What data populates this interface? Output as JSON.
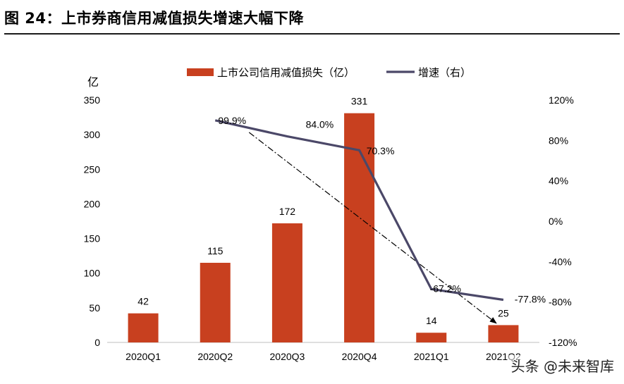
{
  "figure_title": "图 24：上市券商信用减值损失增速大幅下降",
  "watermark": "头条 @未来智库",
  "colors": {
    "bar": "#c8401f",
    "line": "#4b4868",
    "trend": "#000000",
    "rule": "#1a1a1a"
  },
  "chart_data": {
    "type": "bar",
    "title": "",
    "categories": [
      "2020Q1",
      "2020Q2",
      "2020Q3",
      "2020Q4",
      "2021Q1",
      "2021Q2"
    ],
    "series": [
      {
        "name": "上市公司信用减值损失（亿）",
        "kind": "bar",
        "axis": "left",
        "values": [
          42,
          115,
          172,
          331,
          14,
          25
        ],
        "labels": [
          "42",
          "115",
          "172",
          "331",
          "14",
          "25"
        ]
      },
      {
        "name": "增速（右）",
        "kind": "line",
        "axis": "right",
        "values": [
          null,
          99.9,
          84.0,
          70.3,
          -67.2,
          -77.8
        ],
        "labels": [
          "",
          "99.9%",
          "84.0%",
          "70.3%",
          "-67.2%",
          "-77.8%"
        ]
      }
    ],
    "y_left": {
      "label": "亿",
      "min": 0,
      "max": 350,
      "ticks": [
        "0",
        "50",
        "100",
        "150",
        "200",
        "250",
        "300",
        "350"
      ]
    },
    "y_right": {
      "min": -120,
      "max": 120,
      "ticks": [
        "-120%",
        "-80%",
        "-40%",
        "0%",
        "40%",
        "80%",
        "120%"
      ]
    },
    "trend_arrow": {
      "from_category": "2020Q2",
      "from_value_right": 88,
      "to_category": "2021Q2",
      "to_value_right": -101
    },
    "grid": false,
    "legend_position": "top"
  }
}
